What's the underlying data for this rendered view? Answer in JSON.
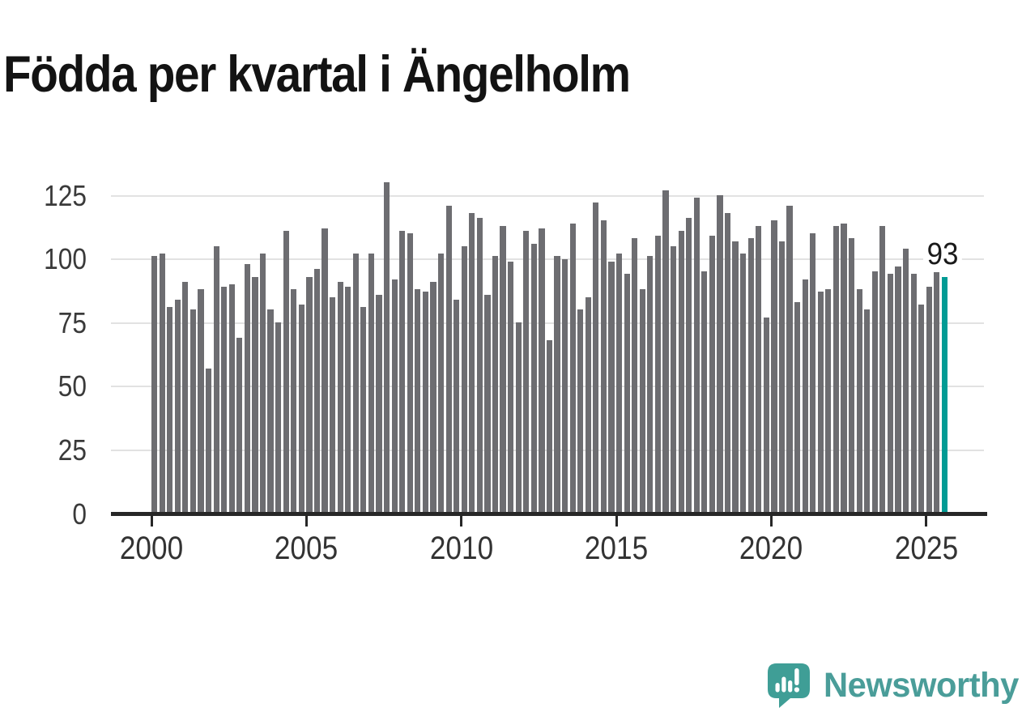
{
  "title": "Födda per kvartal i Ängelholm",
  "branding": {
    "name": "Newsworthy",
    "icon": "newsworthy-speech-bubble-chart-icon",
    "color": "#4a9d99",
    "icon_color": "#3f9e96"
  },
  "chart_data": {
    "type": "bar",
    "title": "Födda per kvartal i Ängelholm",
    "x_start": "2000-Q1",
    "x_end": "2025-Q3",
    "frequency": "quarterly",
    "values": [
      101,
      102,
      81,
      84,
      91,
      80,
      88,
      57,
      105,
      89,
      90,
      69,
      98,
      93,
      102,
      80,
      75,
      111,
      88,
      82,
      93,
      96,
      112,
      85,
      91,
      89,
      102,
      81,
      102,
      86,
      130,
      92,
      111,
      110,
      88,
      87,
      91,
      102,
      121,
      84,
      105,
      118,
      116,
      86,
      101,
      113,
      99,
      75,
      111,
      106,
      112,
      68,
      101,
      100,
      114,
      80,
      85,
      122,
      115,
      99,
      102,
      94,
      108,
      88,
      101,
      109,
      127,
      105,
      111,
      116,
      124,
      95,
      109,
      125,
      118,
      107,
      102,
      108,
      113,
      77,
      115,
      107,
      121,
      83,
      92,
      110,
      87,
      88,
      113,
      114,
      108,
      88,
      80,
      95,
      113,
      94,
      97,
      104,
      94,
      82,
      89,
      95,
      93
    ],
    "highlight_index": 102,
    "highlight_value": 93,
    "highlight_label": "93",
    "bar_color": "#6d6d71",
    "highlight_color": "#009b94",
    "y_ticks": [
      0,
      25,
      50,
      75,
      100,
      125
    ],
    "x_ticks": [
      "2000",
      "2005",
      "2010",
      "2015",
      "2020",
      "2025"
    ],
    "x_tick_quarter_indices": [
      0,
      20,
      40,
      60,
      80,
      100
    ],
    "ylim": [
      0,
      130
    ],
    "grid": true,
    "legend": false
  }
}
